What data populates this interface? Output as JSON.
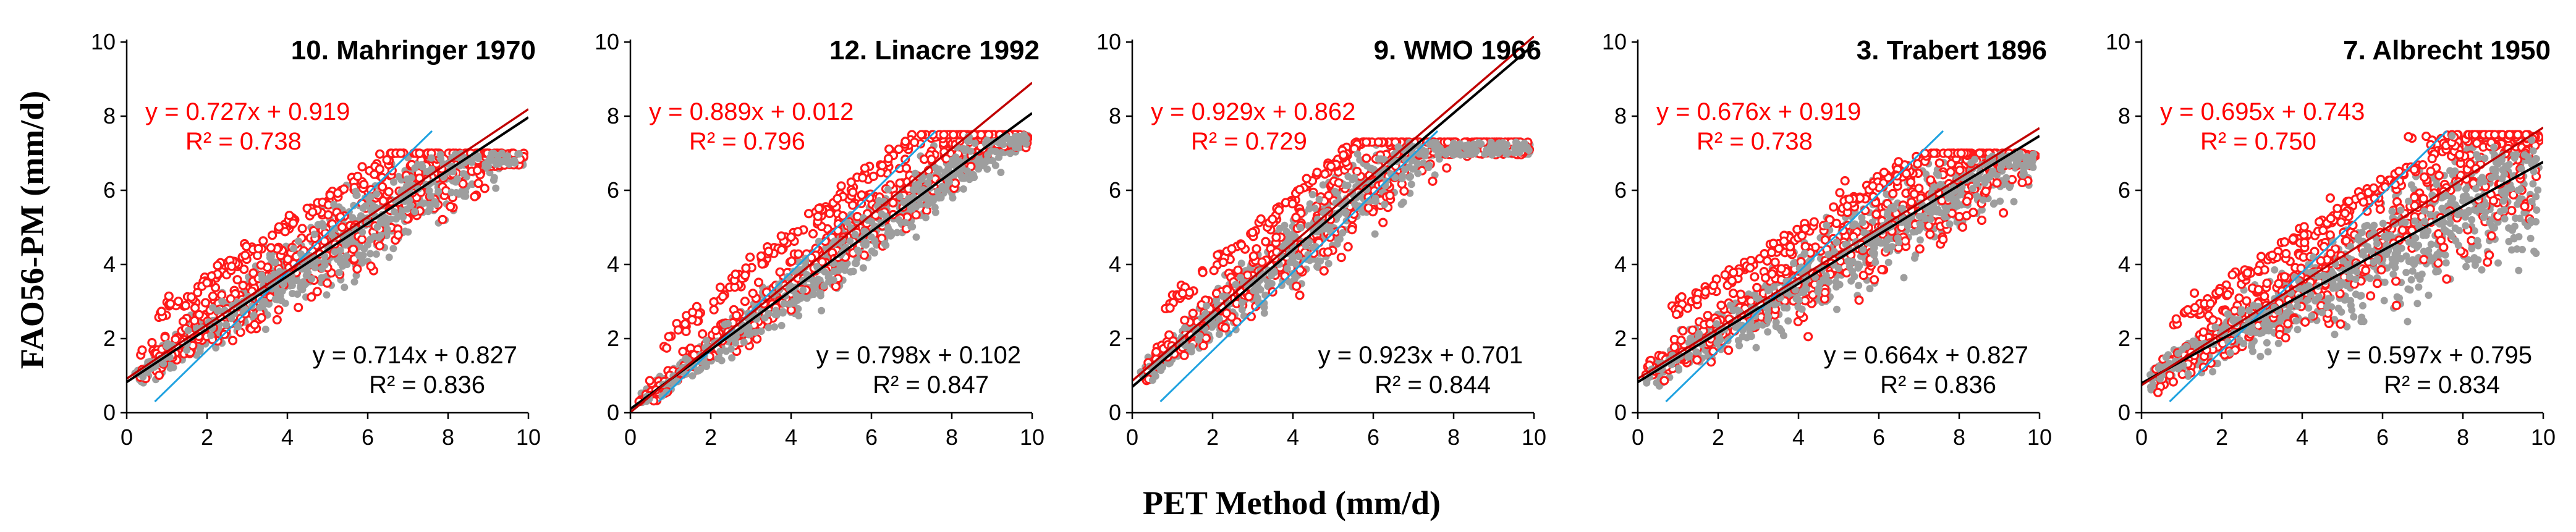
{
  "figure": {
    "ylabel": "FAO56-PM (mm/d)",
    "xlabel": "PET Method (mm/d)"
  },
  "colors": {
    "red_series": "#ff1a1a",
    "gray_series": "#9e9e9e",
    "red_fit": "#c00000",
    "black_fit": "#000000",
    "one_to_one": "#1fa2e0"
  },
  "chart_data": [
    {
      "type": "scatter",
      "title": "10. Mahringer 1970",
      "xlim": [
        0,
        10
      ],
      "ylim": [
        0,
        10
      ],
      "xticks": [
        "0",
        "2",
        "4",
        "6",
        "8",
        "10"
      ],
      "yticks": [
        "0",
        "2",
        "4",
        "6",
        "8",
        "10"
      ],
      "series": [
        {
          "color": "red",
          "fit": {
            "slope": 0.727,
            "intercept": 0.919,
            "r2": 0.738
          },
          "equation": "y = 0.727x + 0.919",
          "r2_label": "R² = 0.738"
        },
        {
          "color": "gray",
          "fit": {
            "slope": 0.714,
            "intercept": 0.827,
            "r2": 0.836
          },
          "equation": "y = 0.714x + 0.827",
          "r2_label": "R² = 0.836"
        }
      ],
      "cloud": {
        "shape": "compressed",
        "ymax": 7.0
      }
    },
    {
      "type": "scatter",
      "title": "12. Linacre 1992",
      "xlim": [
        0,
        10
      ],
      "ylim": [
        0,
        10
      ],
      "xticks": [
        "0",
        "2",
        "4",
        "6",
        "8",
        "10"
      ],
      "yticks": [
        "0",
        "2",
        "4",
        "6",
        "8",
        "10"
      ],
      "series": [
        {
          "color": "red",
          "fit": {
            "slope": 0.889,
            "intercept": 0.012,
            "r2": 0.796
          },
          "equation": "y = 0.889x + 0.012",
          "r2_label": "R² = 0.796"
        },
        {
          "color": "gray",
          "fit": {
            "slope": 0.798,
            "intercept": 0.102,
            "r2": 0.847
          },
          "equation": "y = 0.798x + 0.102",
          "r2_label": "R² = 0.847"
        }
      ],
      "cloud": {
        "shape": "band",
        "ymax": 7.5
      }
    },
    {
      "type": "scatter",
      "title": "9. WMO 1966",
      "xlim": [
        0,
        10
      ],
      "ylim": [
        0,
        10
      ],
      "xticks": [
        "0",
        "2",
        "4",
        "6",
        "8",
        "10"
      ],
      "yticks": [
        "0",
        "2",
        "4",
        "6",
        "8",
        "10"
      ],
      "series": [
        {
          "color": "red",
          "fit": {
            "slope": 0.929,
            "intercept": 0.862,
            "r2": 0.729
          },
          "equation": "y = 0.929x + 0.862",
          "r2_label": "R² = 0.729"
        },
        {
          "color": "gray",
          "fit": {
            "slope": 0.923,
            "intercept": 0.701,
            "r2": 0.844
          },
          "equation": "y = 0.923x + 0.701",
          "r2_label": "R² = 0.844"
        }
      ],
      "cloud": {
        "shape": "compressed",
        "ymax": 7.3
      }
    },
    {
      "type": "scatter",
      "title": "3. Trabert 1896",
      "xlim": [
        0,
        10
      ],
      "ylim": [
        0,
        10
      ],
      "xticks": [
        "0",
        "2",
        "4",
        "6",
        "8",
        "10"
      ],
      "yticks": [
        "0",
        "2",
        "4",
        "6",
        "8",
        "10"
      ],
      "series": [
        {
          "color": "red",
          "fit": {
            "slope": 0.676,
            "intercept": 0.919,
            "r2": 0.738
          },
          "equation": "y = 0.676x + 0.919",
          "r2_label": "R² = 0.738"
        },
        {
          "color": "gray",
          "fit": {
            "slope": 0.664,
            "intercept": 0.827,
            "r2": 0.836
          },
          "equation": "y = 0.664x + 0.827",
          "r2_label": "R² = 0.836"
        }
      ],
      "cloud": {
        "shape": "compressed",
        "ymax": 7.0
      }
    },
    {
      "type": "scatter",
      "title": "7. Albrecht 1950",
      "xlim": [
        0,
        10
      ],
      "ylim": [
        0,
        10
      ],
      "xticks": [
        "0",
        "2",
        "4",
        "6",
        "8",
        "10"
      ],
      "yticks": [
        "0",
        "2",
        "4",
        "6",
        "8",
        "10"
      ],
      "series": [
        {
          "color": "red",
          "fit": {
            "slope": 0.695,
            "intercept": 0.743,
            "r2": 0.75
          },
          "equation": "y = 0.695x + 0.743",
          "r2_label": "R² = 0.750"
        },
        {
          "color": "gray",
          "fit": {
            "slope": 0.597,
            "intercept": 0.795,
            "r2": 0.834
          },
          "equation": "y = 0.597x + 0.795",
          "r2_label": "R² = 0.834"
        }
      ],
      "cloud": {
        "shape": "fan",
        "ymax": 7.5
      }
    }
  ]
}
